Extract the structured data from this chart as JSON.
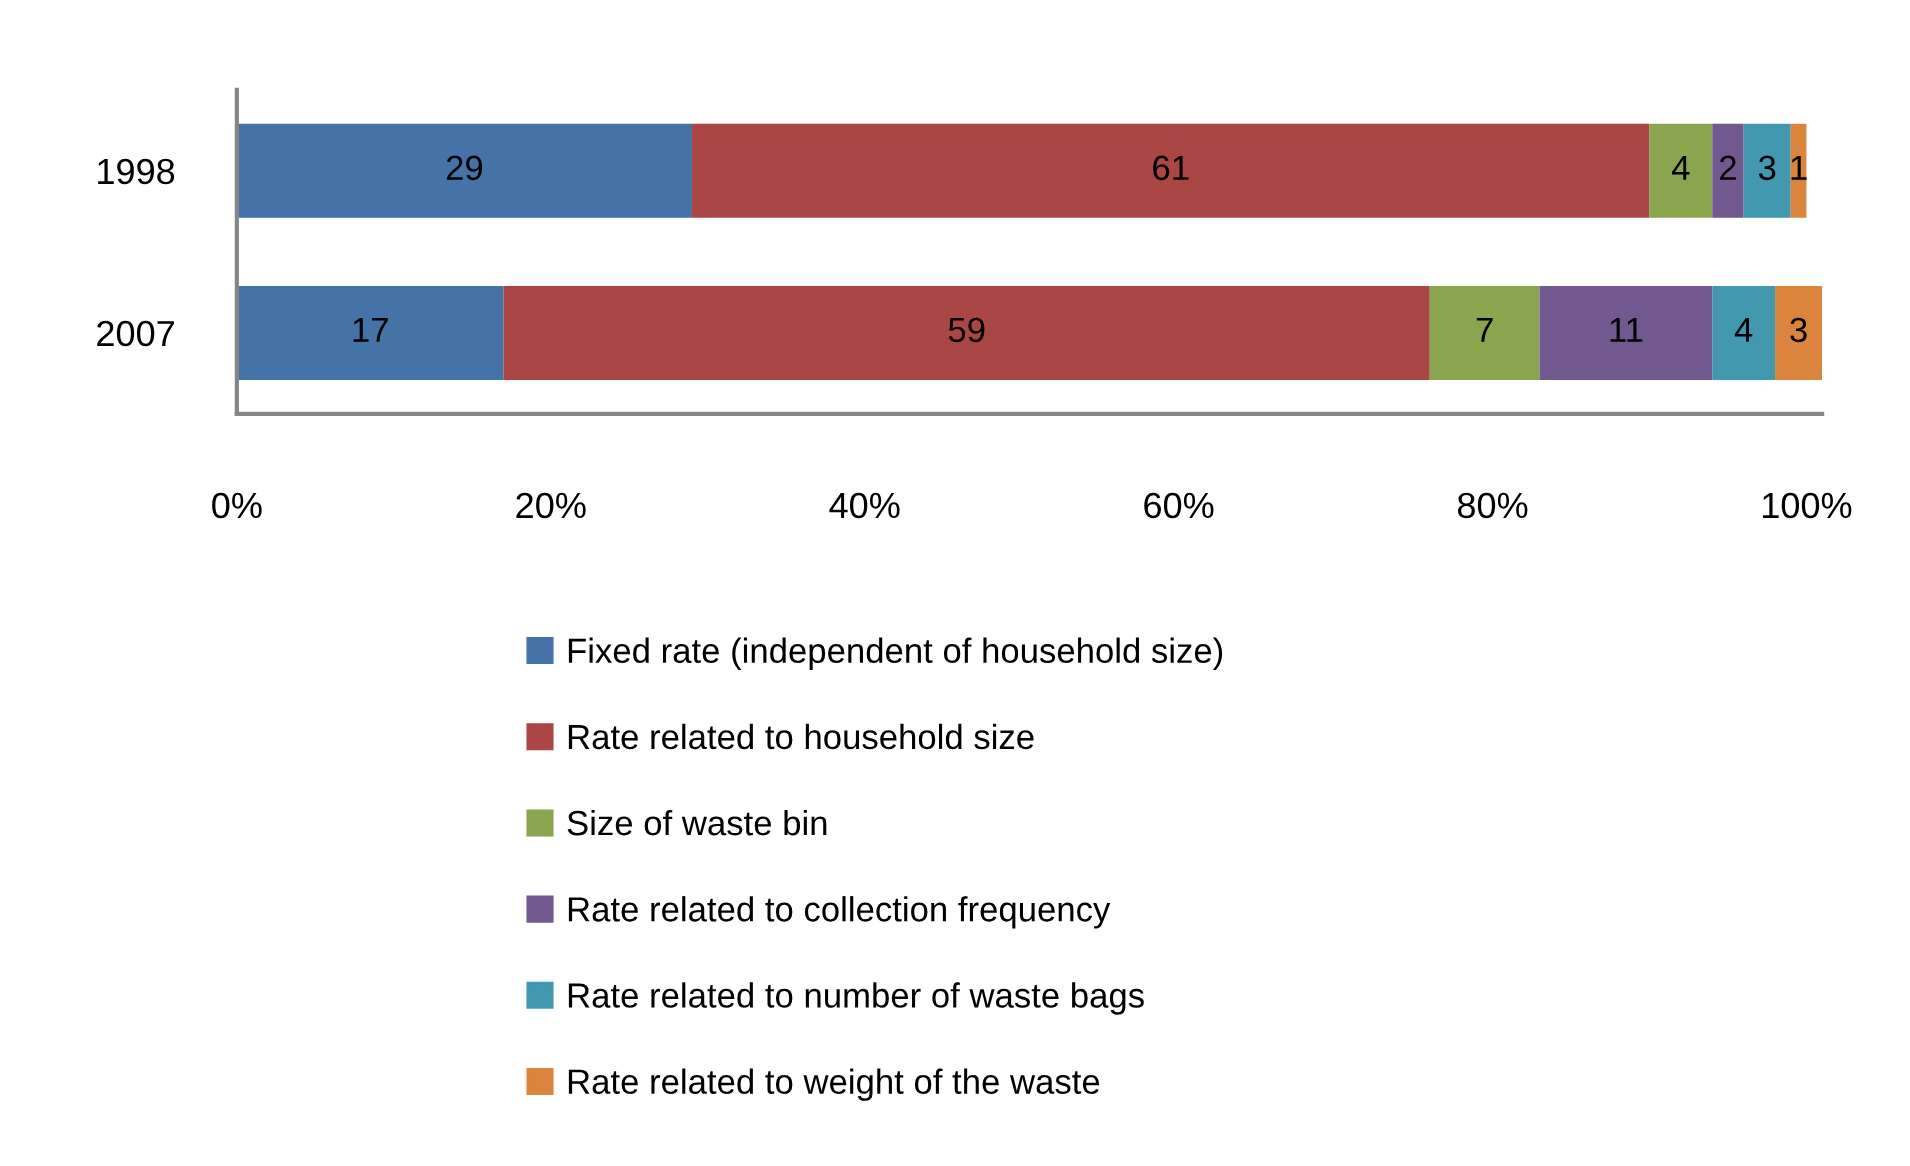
{
  "chart_data": {
    "type": "bar",
    "orientation": "horizontal",
    "stacked": true,
    "categories": [
      "1998",
      "2007"
    ],
    "series": [
      {
        "name": "Fixed rate (independent of household size)",
        "color": "#4572a7",
        "values": [
          29,
          17
        ]
      },
      {
        "name": "Rate related to household size",
        "color": "#aa4643",
        "values": [
          61,
          59
        ]
      },
      {
        "name": "Size of waste bin",
        "color": "#89a54e",
        "values": [
          4,
          7
        ]
      },
      {
        "name": "Rate related to collection frequency",
        "color": "#71588f",
        "values": [
          2,
          11
        ]
      },
      {
        "name": "Rate related to number of waste bags",
        "color": "#4198af",
        "values": [
          3,
          4
        ]
      },
      {
        "name": "Rate related to weight of the waste",
        "color": "#db843d",
        "values": [
          1,
          3
        ]
      }
    ],
    "xlim": [
      0,
      101
    ],
    "xticks": [
      {
        "value": 0,
        "label": "0%"
      },
      {
        "value": 20,
        "label": "20%"
      },
      {
        "value": 40,
        "label": "40%"
      },
      {
        "value": 60,
        "label": "60%"
      },
      {
        "value": 80,
        "label": "80%"
      },
      {
        "value": 100,
        "label": "100%"
      }
    ],
    "data_labels": true,
    "grid": false,
    "legend": "bottom"
  }
}
